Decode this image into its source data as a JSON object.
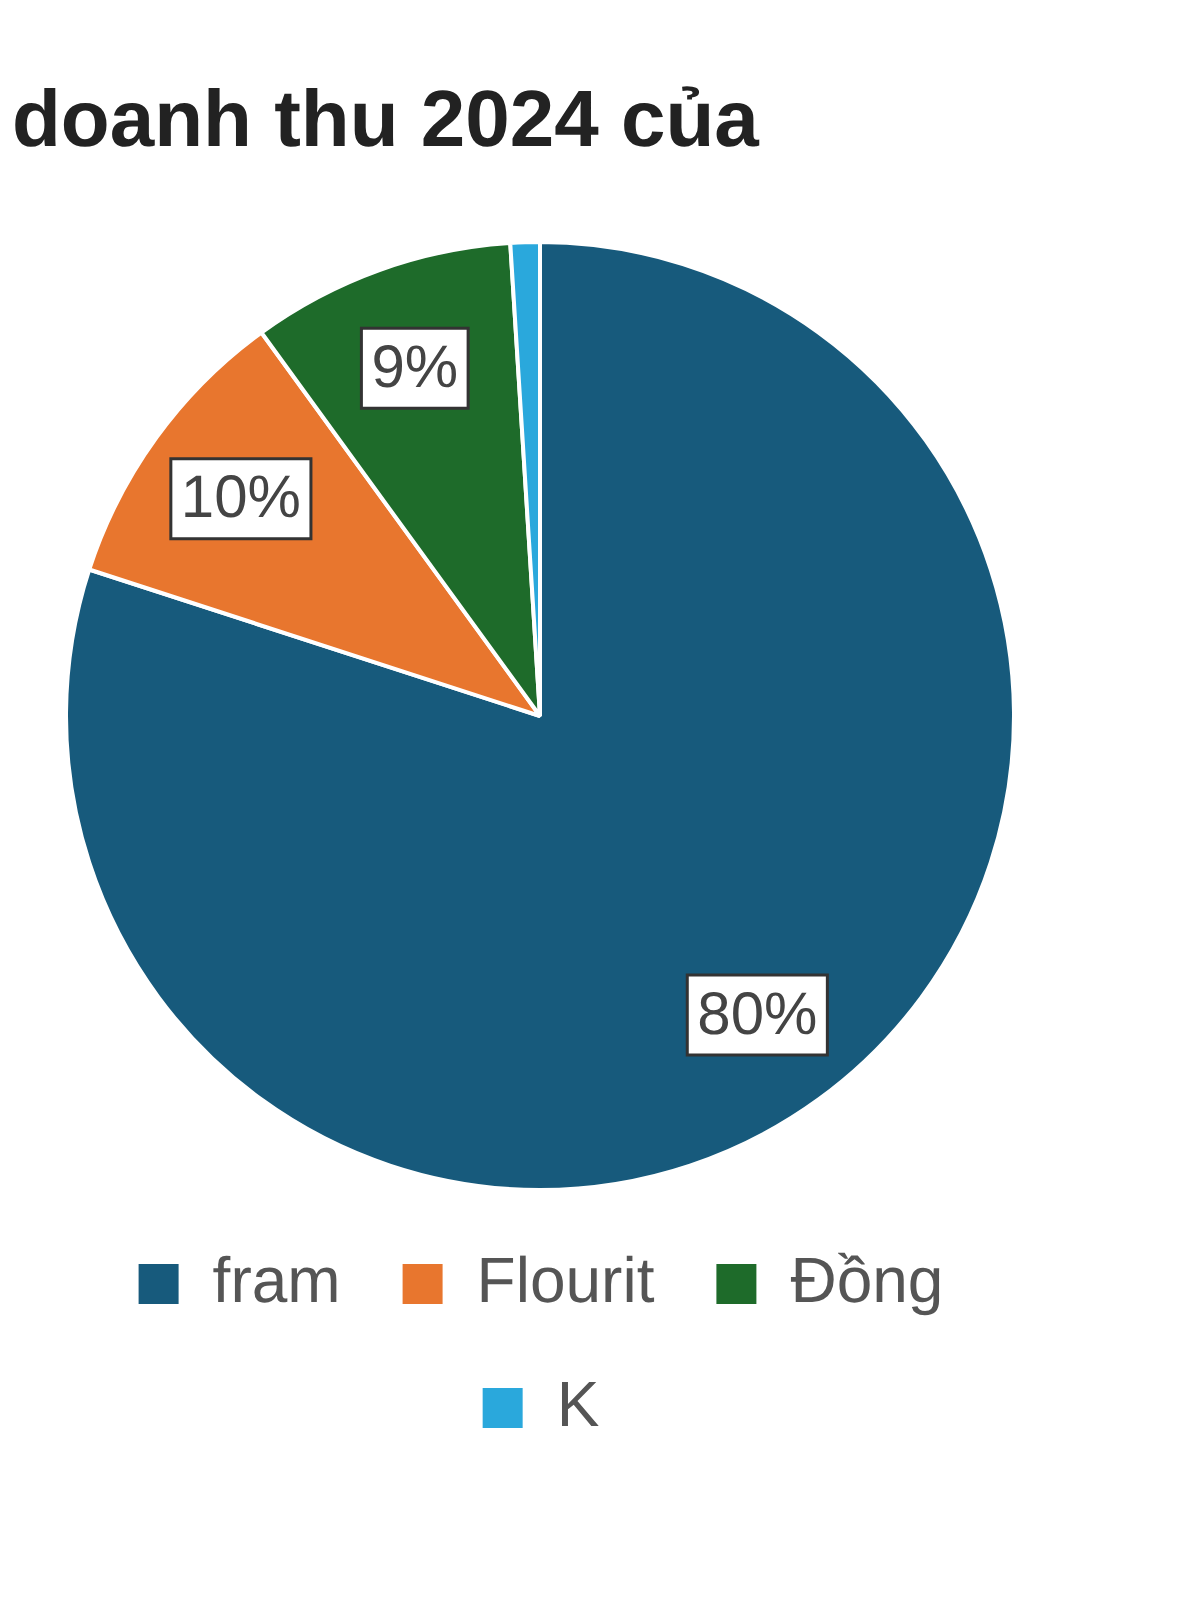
{
  "chart_data": {
    "type": "pie",
    "title": "doanh thu 2024 của",
    "categories": [
      "fram",
      "Flourit",
      "Đồng",
      "K"
    ],
    "values": [
      80,
      10,
      9,
      1
    ],
    "colors": [
      "#175a7c",
      "#e8762e",
      "#1e6b2a",
      "#2aa8dc"
    ],
    "value_labels": [
      "80%",
      "10%",
      "9%",
      null
    ],
    "legend": "bottom"
  }
}
